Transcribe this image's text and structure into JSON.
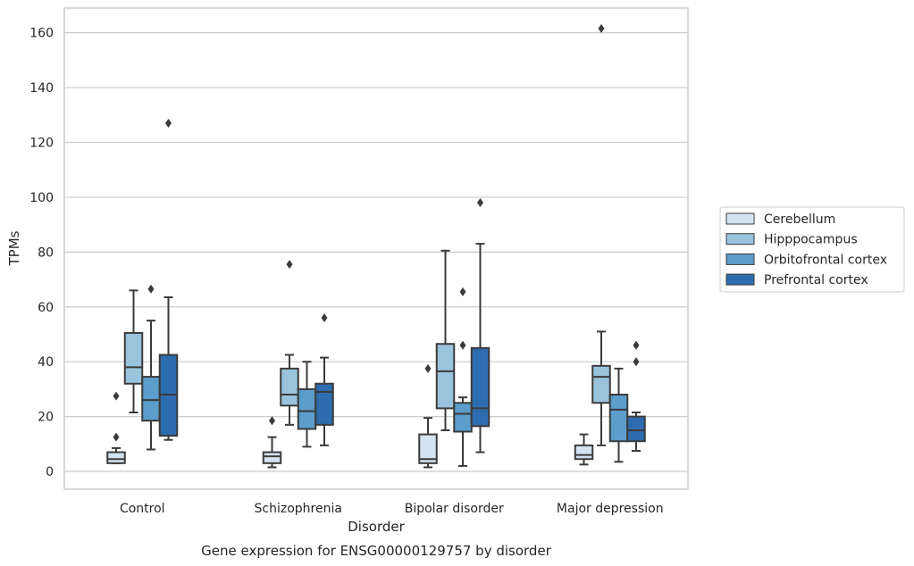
{
  "chart_data": {
    "type": "boxplot",
    "xlabel": "Disorder",
    "ylabel": "TPMs",
    "caption": "Gene expression for ENSG00000129757 by disorder",
    "categories": [
      "Control",
      "Schizophrenia",
      "Bipolar disorder",
      "Major depression"
    ],
    "ylim": [
      -6.5,
      169
    ],
    "yticks": [
      0,
      20,
      40,
      60,
      80,
      100,
      120,
      140,
      160
    ],
    "grid": "horizontal",
    "legend_position": "right",
    "series": [
      {
        "name": "Cerebellum",
        "color": "#d4e3f2",
        "boxes": [
          {
            "whisker_low": 3,
            "q1": 3,
            "median": 4.5,
            "q3": 7,
            "whisker_high": 8.5,
            "outliers": [
              12.5,
              27.5
            ]
          },
          {
            "whisker_low": 1.5,
            "q1": 3,
            "median": 5.5,
            "q3": 7,
            "whisker_high": 12.5,
            "outliers": [
              18.5
            ]
          },
          {
            "whisker_low": 1.5,
            "q1": 3,
            "median": 4.5,
            "q3": 13.5,
            "whisker_high": 19.5,
            "outliers": [
              37.5
            ]
          },
          {
            "whisker_low": 2.5,
            "q1": 4.5,
            "median": 6,
            "q3": 9.5,
            "whisker_high": 13.5,
            "outliers": []
          }
        ]
      },
      {
        "name": "Hipppocampus",
        "color": "#9ac3dd",
        "boxes": [
          {
            "whisker_low": 21.5,
            "q1": 32,
            "median": 38,
            "q3": 50.5,
            "whisker_high": 66,
            "outliers": []
          },
          {
            "whisker_low": 17,
            "q1": 24,
            "median": 28,
            "q3": 37.5,
            "whisker_high": 42.5,
            "outliers": [
              75.5
            ]
          },
          {
            "whisker_low": 15,
            "q1": 23,
            "median": 36.5,
            "q3": 46.5,
            "whisker_high": 80.5,
            "outliers": []
          },
          {
            "whisker_low": 9.5,
            "q1": 25,
            "median": 34.5,
            "q3": 38.5,
            "whisker_high": 51,
            "outliers": [
              161.5
            ]
          }
        ]
      },
      {
        "name": "Orbitofrontal cortex",
        "color": "#5b9dcb",
        "boxes": [
          {
            "whisker_low": 8,
            "q1": 18.5,
            "median": 26,
            "q3": 34.5,
            "whisker_high": 55,
            "outliers": [
              66.5
            ]
          },
          {
            "whisker_low": 9,
            "q1": 15.5,
            "median": 22,
            "q3": 30,
            "whisker_high": 40,
            "outliers": []
          },
          {
            "whisker_low": 2,
            "q1": 14.5,
            "median": 21,
            "q3": 25,
            "whisker_high": 27,
            "outliers": [
              46,
              65.5
            ]
          },
          {
            "whisker_low": 3.5,
            "q1": 11,
            "median": 22.5,
            "q3": 28,
            "whisker_high": 37.5,
            "outliers": []
          }
        ]
      },
      {
        "name": "Prefrontal cortex",
        "color": "#2d6cae",
        "boxes": [
          {
            "whisker_low": 11.5,
            "q1": 13,
            "median": 28,
            "q3": 42.5,
            "whisker_high": 63.5,
            "outliers": [
              127
            ]
          },
          {
            "whisker_low": 9.5,
            "q1": 17,
            "median": 29,
            "q3": 32,
            "whisker_high": 41.5,
            "outliers": [
              56
            ]
          },
          {
            "whisker_low": 7,
            "q1": 16.5,
            "median": 23,
            "q3": 45,
            "whisker_high": 83,
            "outliers": [
              98
            ]
          },
          {
            "whisker_low": 7.5,
            "q1": 11,
            "median": 15,
            "q3": 20,
            "whisker_high": 21.5,
            "outliers": [
              40,
              46
            ]
          }
        ]
      }
    ]
  }
}
